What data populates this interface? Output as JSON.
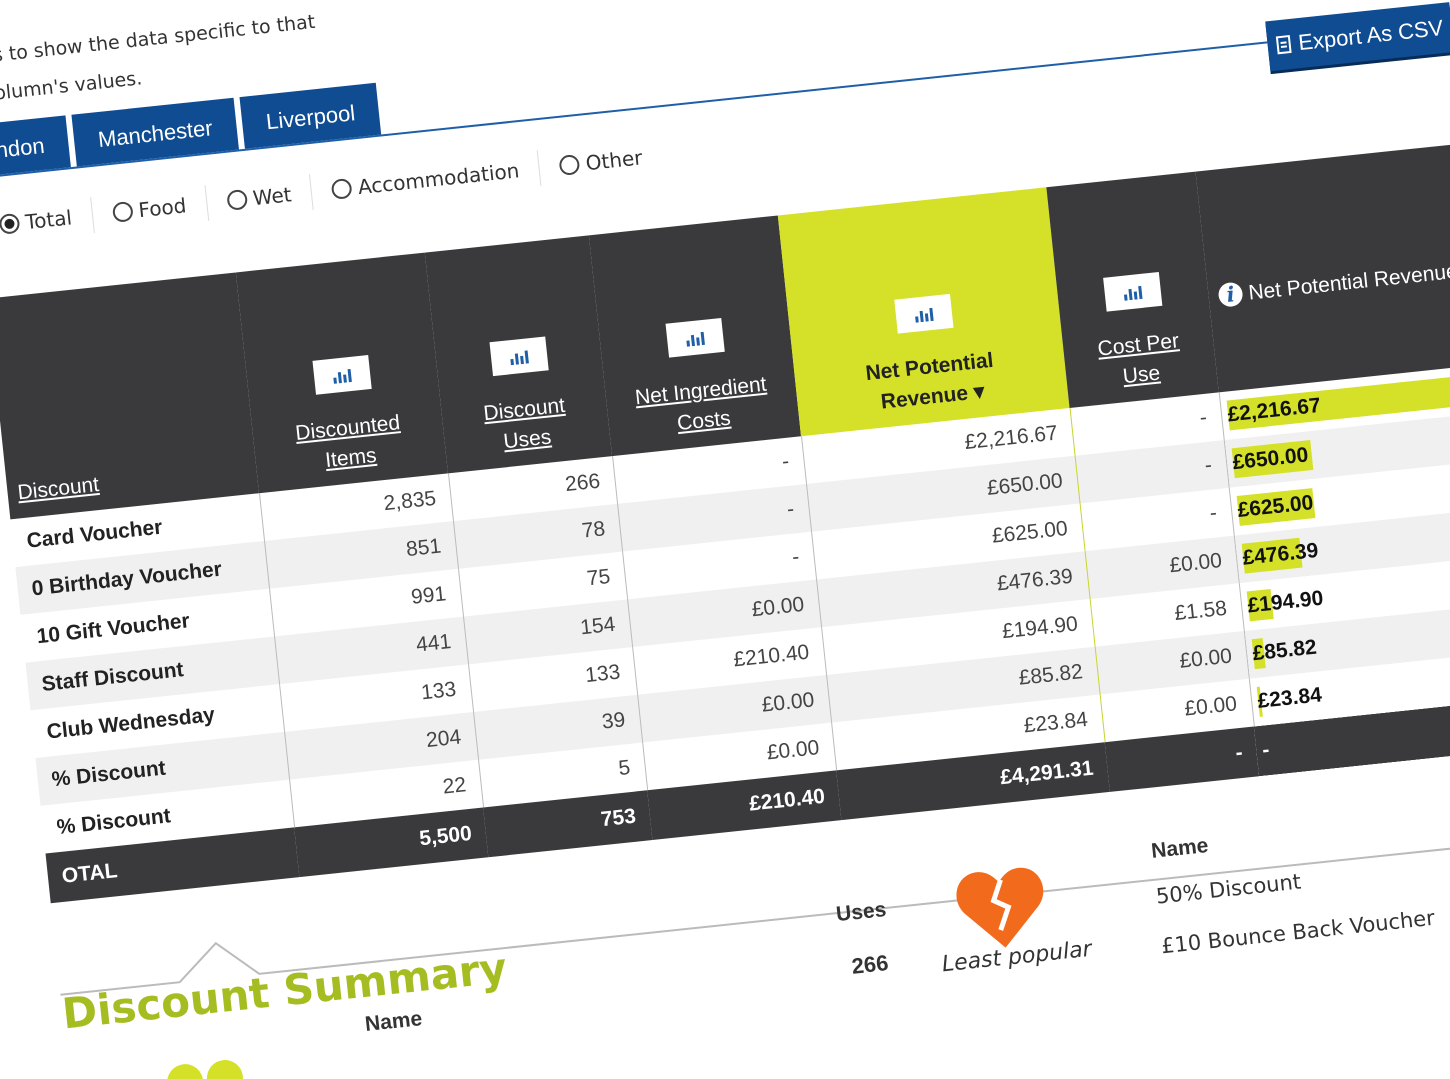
{
  "intro": {
    "line1": "tabs to show the data specific to that",
    "line2": "d column's values."
  },
  "tabs": [
    "ndon",
    "Manchester",
    "Liverpool"
  ],
  "export_label": "Export As CSV",
  "filters": [
    {
      "label": "Total",
      "checked": true
    },
    {
      "label": "Food",
      "checked": false
    },
    {
      "label": "Wet",
      "checked": false
    },
    {
      "label": "Accommodation",
      "checked": false
    },
    {
      "label": "Other",
      "checked": false
    }
  ],
  "table": {
    "headers": {
      "discount": "Discount",
      "items": [
        "Discounted",
        "Items"
      ],
      "uses": [
        "Discount",
        "Uses"
      ],
      "ingredient": [
        "Net Ingredient",
        "Costs"
      ],
      "revenue": [
        "Net Potential",
        "Revenue ▾"
      ],
      "cost": [
        "Cost Per",
        "Use"
      ],
      "info": "Net Potential Revenue"
    },
    "rows": [
      {
        "name": "Card Voucher",
        "items": "2,835",
        "uses": "266",
        "ingredient": "-",
        "revenue": "£2,216.67",
        "cost": "-",
        "bar_label": "£2,216.67",
        "share": 1.0
      },
      {
        "name": "0 Birthday Voucher",
        "items": "851",
        "uses": "78",
        "ingredient": "-",
        "revenue": "£650.00",
        "cost": "-",
        "bar_label": "£650.00",
        "share": 0.293
      },
      {
        "name": "10 Gift Voucher",
        "items": "991",
        "uses": "75",
        "ingredient": "-",
        "revenue": "£625.00",
        "cost": "-",
        "bar_label": "£625.00",
        "share": 0.282
      },
      {
        "name": "Staff Discount",
        "items": "441",
        "uses": "154",
        "ingredient": "£0.00",
        "revenue": "£476.39",
        "cost": "£0.00",
        "bar_label": "£476.39",
        "share": 0.215
      },
      {
        "name": "Club Wednesday",
        "items": "133",
        "uses": "133",
        "ingredient": "£210.40",
        "revenue": "£194.90",
        "cost": "£1.58",
        "bar_label": "£194.90",
        "share": 0.088
      },
      {
        "name": "% Discount",
        "items": "204",
        "uses": "39",
        "ingredient": "£0.00",
        "revenue": "£85.82",
        "cost": "£0.00",
        "bar_label": "£85.82",
        "share": 0.039
      },
      {
        "name": "% Discount",
        "items": "22",
        "uses": "5",
        "ingredient": "£0.00",
        "revenue": "£23.84",
        "cost": "£0.00",
        "bar_label": "£23.84",
        "share": 0.011
      }
    ],
    "total": {
      "label": "OTAL",
      "items": "5,500",
      "uses": "753",
      "ingredient": "£210.40",
      "revenue": "£4,291.31",
      "cost": "-",
      "bar": "-"
    }
  },
  "summary": {
    "title": "Discount Summary",
    "name_head": "Name",
    "uses_head": "Uses",
    "uses_value": "266",
    "least_label": "Least popular",
    "name2_head": "Name",
    "names": [
      "50% Discount",
      "£10 Bounce Back Voucher"
    ]
  },
  "colors": {
    "accent": "#d4e128",
    "brand": "#0f4c92",
    "header": "#3a3a3c",
    "heart": "#f26a1b"
  }
}
